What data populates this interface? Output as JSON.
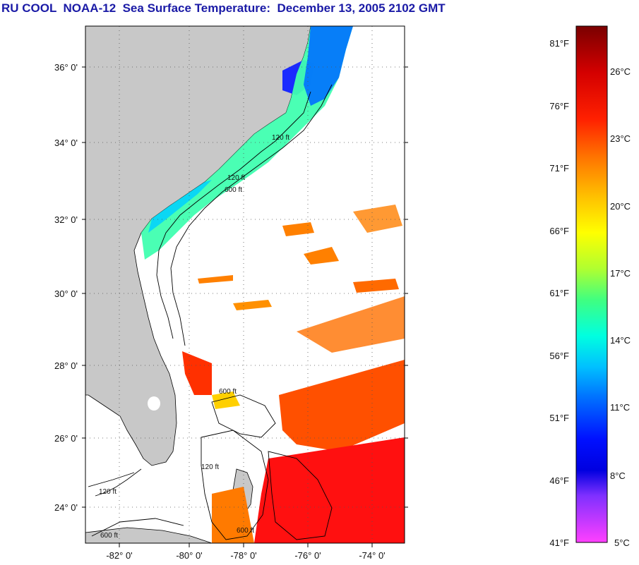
{
  "title": "RU COOL  NOAA-12  Sea Surface Temperature:  December 13, 2005 2102 GMT",
  "map": {
    "lat_labels": [
      "36° 0'",
      "34° 0'",
      "32° 0'",
      "30° 0'",
      "28° 0'",
      "26° 0'",
      "24° 0'"
    ],
    "lon_labels": [
      "-82° 0'",
      "-80° 0'",
      "-78° 0'",
      "-76° 0'",
      "-74° 0'"
    ],
    "contour_labels": [
      "120 ft",
      "600 ft",
      "120 ft",
      "600 ft",
      "120 ft",
      "600 ft",
      "120 ft",
      "600 ft"
    ],
    "colors": {
      "land": "#c8c8c8",
      "ocean_nodata": "#ffffff",
      "contour": "#000000"
    }
  },
  "colorbar": {
    "fahrenheit_labels": [
      "81°F",
      "76°F",
      "71°F",
      "66°F",
      "61°F",
      "56°F",
      "51°F",
      "46°F",
      "41°F"
    ],
    "celsius_labels": [
      "26°C",
      "23°C",
      "20°C",
      "17°C",
      "14°C",
      "11°C",
      "8°C",
      "5°C"
    ],
    "colors_top_to_bottom": [
      "#7a0000",
      "#ff0000",
      "#ff8000",
      "#ffff00",
      "#00ff80",
      "#00ffff",
      "#0080ff",
      "#0000ff",
      "#8000ff",
      "#ff40ff"
    ]
  }
}
